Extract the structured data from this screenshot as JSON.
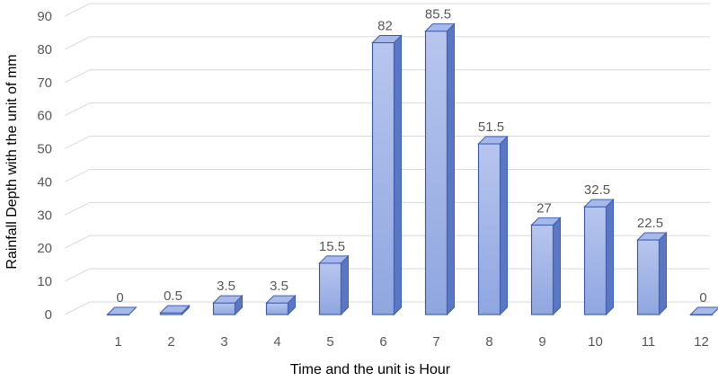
{
  "chart_data": {
    "type": "bar",
    "title": "",
    "xlabel": "Time and the unit is Hour",
    "ylabel": "Rainfall Depth with the unit of mm",
    "categories": [
      "1",
      "2",
      "3",
      "4",
      "5",
      "6",
      "7",
      "8",
      "9",
      "10",
      "11",
      "12"
    ],
    "values": [
      0,
      0.5,
      3.5,
      3.5,
      15.5,
      82,
      85.5,
      51.5,
      27,
      32.5,
      22.5,
      0
    ],
    "data_labels": [
      "0",
      "0.5",
      "3.5",
      "3.5",
      "15.5",
      "82",
      "85.5",
      "51.5",
      "27",
      "32.5",
      "22.5",
      "0"
    ],
    "ylim": [
      0,
      90
    ],
    "yticks": [
      0,
      10,
      20,
      30,
      40,
      50,
      60,
      70,
      80,
      90
    ],
    "grid": true,
    "bar_style": "3d-column",
    "colors": {
      "bar_front_top": "#b7c6ee",
      "bar_front_bottom": "#8fa6e0",
      "bar_side": "#5b77c4",
      "bar_top": "#a7b9ea",
      "bar_edge": "#3f5fb4",
      "grid": "#d9d9d9",
      "tick_text": "#595959"
    }
  }
}
